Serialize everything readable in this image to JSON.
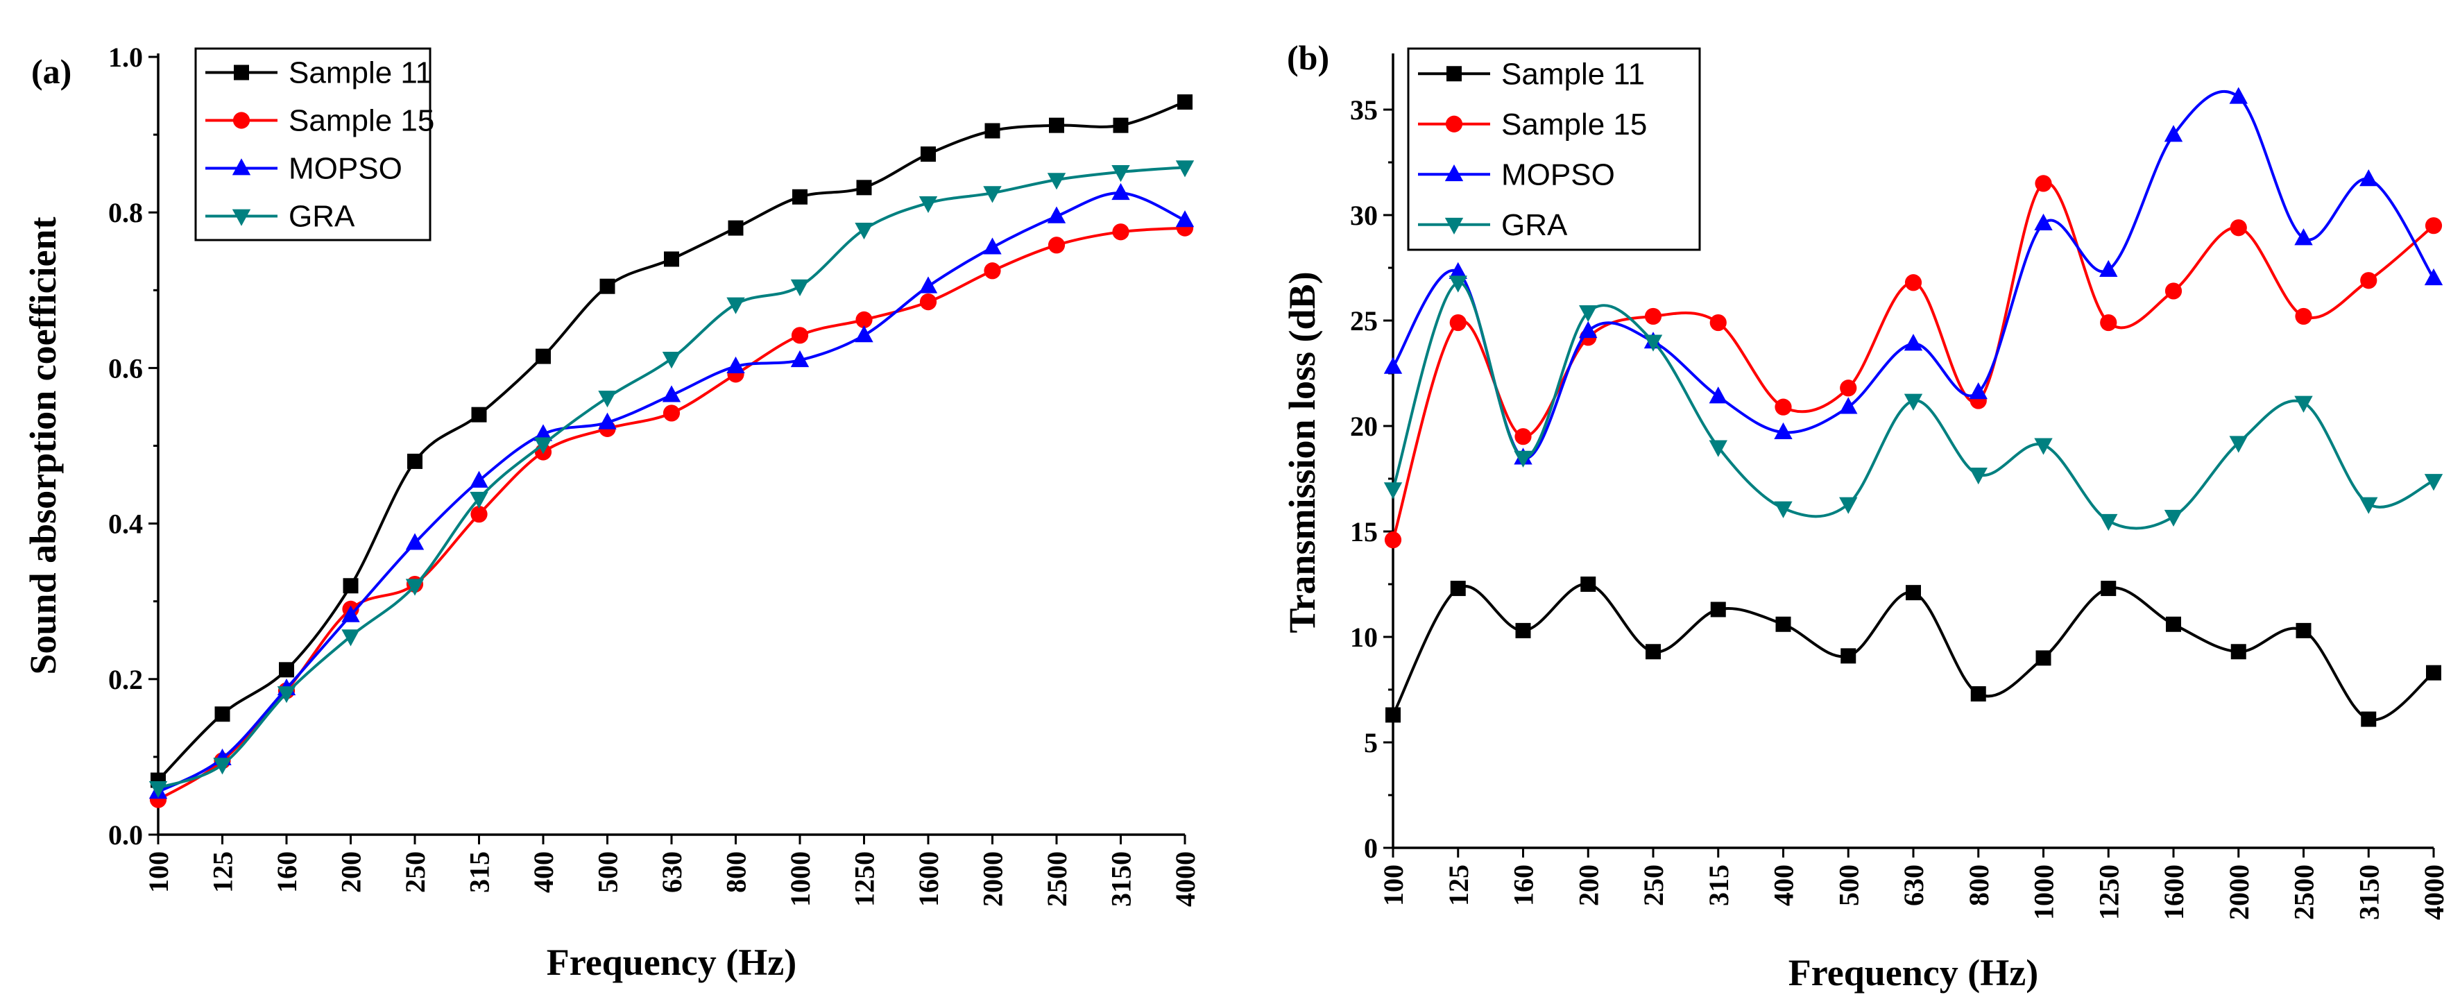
{
  "chart_data": [
    {
      "panel_label": "(a)",
      "type": "line",
      "title": "",
      "xlabel": "Frequency (Hz)",
      "ylabel": "Sound absorption coefficient",
      "categories": [
        "100",
        "125",
        "160",
        "200",
        "250",
        "315",
        "400",
        "500",
        "630",
        "800",
        "1000",
        "1250",
        "1600",
        "2000",
        "2500",
        "3150",
        "4000"
      ],
      "ylim": [
        0.0,
        1.0
      ],
      "yticks": [
        "0.0",
        "0.2",
        "0.4",
        "0.6",
        "0.8",
        "1.0"
      ],
      "ytick_values": [
        0,
        0.2,
        0.4,
        0.6,
        0.8,
        1.0
      ],
      "legend_position": "top-left",
      "series": [
        {
          "name": "Sample 11",
          "color": "#000000",
          "marker": "square",
          "values": [
            0.07,
            0.155,
            0.212,
            0.32,
            0.48,
            0.54,
            0.615,
            0.705,
            0.74,
            0.78,
            0.82,
            0.832,
            0.875,
            0.905,
            0.912,
            0.912,
            0.942
          ]
        },
        {
          "name": "Sample 15",
          "color": "#ff0000",
          "marker": "circle",
          "values": [
            0.045,
            0.095,
            0.185,
            0.29,
            0.322,
            0.412,
            0.492,
            0.522,
            0.542,
            0.592,
            0.642,
            0.662,
            0.685,
            0.725,
            0.758,
            0.775,
            0.78
          ]
        },
        {
          "name": "MOPSO",
          "color": "#0000ff",
          "marker": "triangle-up",
          "values": [
            0.055,
            0.098,
            0.188,
            0.282,
            0.375,
            0.455,
            0.515,
            0.53,
            0.565,
            0.602,
            0.61,
            0.642,
            0.705,
            0.755,
            0.795,
            0.825,
            0.79
          ]
        },
        {
          "name": "GRA",
          "color": "#008080",
          "marker": "triangle-down",
          "values": [
            0.06,
            0.09,
            0.182,
            0.255,
            0.32,
            0.432,
            0.502,
            0.562,
            0.612,
            0.682,
            0.705,
            0.778,
            0.812,
            0.825,
            0.842,
            0.852,
            0.858
          ]
        }
      ]
    },
    {
      "panel_label": "(b)",
      "type": "line",
      "title": "",
      "xlabel": "Frequency (Hz)",
      "ylabel": "Transmission loss (dB)",
      "categories": [
        "100",
        "125",
        "160",
        "200",
        "250",
        "315",
        "400",
        "500",
        "630",
        "800",
        "1000",
        "1250",
        "1600",
        "2000",
        "2500",
        "3150",
        "4000"
      ],
      "ylim": [
        0,
        37.5
      ],
      "yticks": [
        "0",
        "5",
        "10",
        "15",
        "20",
        "25",
        "30",
        "35"
      ],
      "ytick_values": [
        0,
        5,
        10,
        15,
        20,
        25,
        30,
        35
      ],
      "legend_position": "top-left",
      "series": [
        {
          "name": "Sample 11",
          "color": "#000000",
          "marker": "square",
          "values": [
            6.3,
            12.3,
            10.3,
            12.5,
            9.3,
            11.3,
            10.6,
            9.1,
            12.1,
            7.3,
            9.0,
            12.3,
            10.6,
            9.3,
            10.3,
            6.1,
            8.3
          ]
        },
        {
          "name": "Sample 15",
          "color": "#ff0000",
          "marker": "circle",
          "values": [
            14.6,
            24.9,
            19.5,
            24.2,
            25.2,
            24.9,
            20.9,
            21.8,
            26.8,
            21.2,
            31.5,
            24.9,
            26.4,
            29.4,
            25.2,
            26.9,
            29.5
          ]
        },
        {
          "name": "MOPSO",
          "color": "#0000ff",
          "marker": "triangle-up",
          "values": [
            22.8,
            27.3,
            18.5,
            24.5,
            24.0,
            21.4,
            19.7,
            20.9,
            23.9,
            21.6,
            29.6,
            27.4,
            33.8,
            35.6,
            28.9,
            31.7,
            27.0
          ]
        },
        {
          "name": "GRA",
          "color": "#008080",
          "marker": "triangle-down",
          "values": [
            17.0,
            26.8,
            18.5,
            25.4,
            24.0,
            19.0,
            16.1,
            16.3,
            21.2,
            17.7,
            19.1,
            15.5,
            15.7,
            19.2,
            21.1,
            16.3,
            17.4
          ]
        }
      ]
    }
  ]
}
